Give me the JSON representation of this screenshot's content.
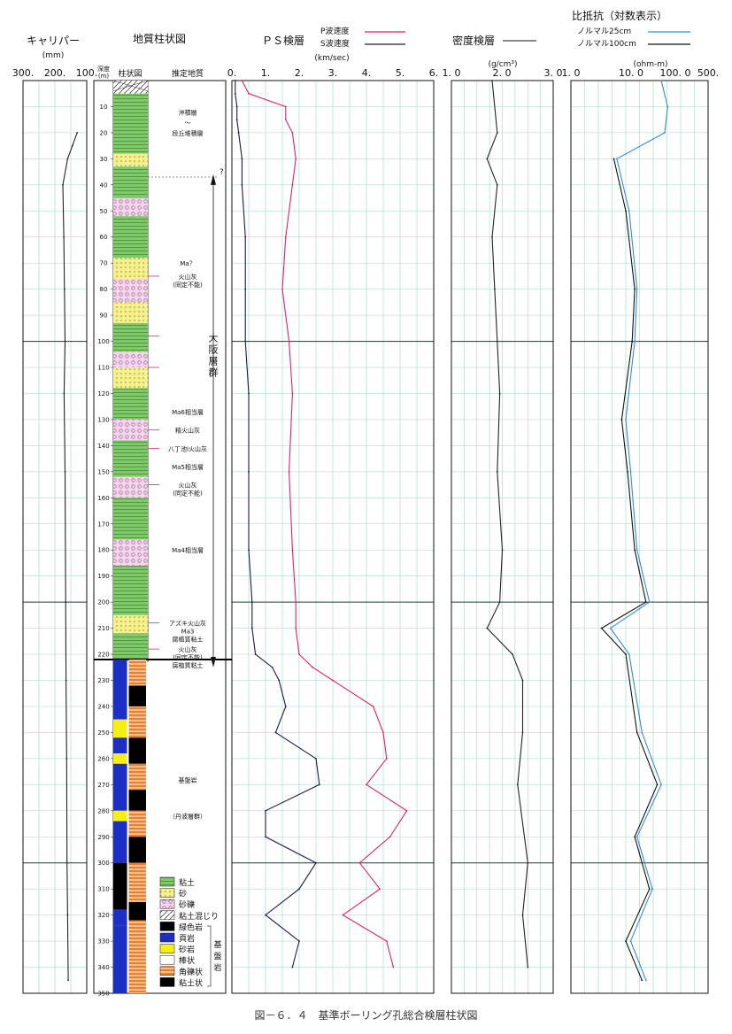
{
  "caption": "図－６．４　基準ボーリング孔総合検層柱状図",
  "headers": {
    "caliper": "キャリパー",
    "caliper_unit": "(mm)",
    "geo": "地質柱状図",
    "depth": "深度",
    "depth_unit": "(m)",
    "column": "柱状図",
    "estimated": "推定地質",
    "ps": "ＰＳ検層",
    "ps_unit": "(km/sec)",
    "density": "密度検層",
    "density_unit": "(g/cm³)",
    "resistivity": "比抵抗（対数表示）",
    "res_unit": "(ohm-m)"
  },
  "legend_lines": {
    "p_wave": "P波速度",
    "s_wave": "S波速度",
    "normal25": "ノルマル25cm",
    "normal100": "ノルマル100cm"
  },
  "geo_annotations": [
    {
      "text": "沖積層",
      "depth": 12
    },
    {
      "text": "〜",
      "depth": 16
    },
    {
      "text": "段丘堆積層",
      "depth": 20
    },
    {
      "text": "Ma？",
      "depth": 70
    },
    {
      "text": "火山灰",
      "depth": 75
    },
    {
      "text": "(同定不能)",
      "depth": 78
    },
    {
      "text": "Ma6相当層",
      "depth": 127
    },
    {
      "text": "精火山灰",
      "depth": 134
    },
    {
      "text": "八丁池Ⅰ火山灰",
      "depth": 141
    },
    {
      "text": "Ma5相当層",
      "depth": 148
    },
    {
      "text": "火山灰",
      "depth": 155
    },
    {
      "text": "(同定不能)",
      "depth": 158
    },
    {
      "text": "Ma4相当層",
      "depth": 180
    },
    {
      "text": "アズキ火山灰",
      "depth": 208
    },
    {
      "text": "Ma3",
      "depth": 211
    },
    {
      "text": "腐植質粘土",
      "depth": 214
    },
    {
      "text": "火山灰",
      "depth": 218
    },
    {
      "text": "(同定不能)",
      "depth": 221
    },
    {
      "text": "腐植質粘土",
      "depth": 224
    },
    {
      "text": "基盤岩",
      "depth": 268
    },
    {
      "text": "（丹波層群）",
      "depth": 282
    }
  ],
  "group_label": "大阪層群",
  "question_mark": "?",
  "rock_legend": [
    {
      "label": "粘土",
      "color": "#7fc96a",
      "kind": "hatch"
    },
    {
      "label": "砂",
      "color": "#f4f08c",
      "kind": "dots"
    },
    {
      "label": "砂礫",
      "color": "#f2d6ea",
      "kind": "circles"
    },
    {
      "label": "粘土混じり",
      "color": "#ffffff",
      "kind": "slash"
    },
    {
      "label": "緑色岩",
      "color": "#000000",
      "kind": "solid"
    },
    {
      "label": "頁岩",
      "color": "#1c2fc4",
      "kind": "solid"
    },
    {
      "label": "砂岩",
      "color": "#f6ef16",
      "kind": "solid"
    },
    {
      "label": "棒状",
      "color": "#ffffff",
      "kind": "solid"
    },
    {
      "label": "角礫状",
      "color": "#ee7f2a",
      "kind": "stripes"
    },
    {
      "label": "粘土状",
      "color": "#000000",
      "kind": "solid"
    }
  ],
  "rock_legend_group": "基盤岩",
  "colors": {
    "p_wave": "#e0206a",
    "s_wave": "#1a1a4a",
    "normal25": "#2e8ed8",
    "normal100": "#111111",
    "grid": "#9fd6c8",
    "grid_major": "#1b3a3a",
    "clay": "#7fc96a",
    "shale": "#1c2fc4",
    "sandstone": "#f6ef16",
    "breccia": "#ee7f2a",
    "greenstone": "#000000"
  },
  "chart_data": [
    {
      "type": "line",
      "title": "キャリパー",
      "xlabel": "(mm)",
      "ylabel": "深度 (m)",
      "x_ticks": [
        "300.",
        "200.",
        "100."
      ],
      "xlim": [
        300,
        100
      ],
      "ylim": [
        0,
        350
      ],
      "depth": [
        20,
        25,
        30,
        40,
        60,
        80,
        100,
        120,
        150,
        200,
        230,
        260,
        300,
        320,
        345
      ],
      "series": [
        {
          "values": [
            130,
            145,
            160,
            175,
            172,
            170,
            168,
            171,
            168,
            166,
            165,
            163,
            162,
            160,
            158
          ]
        }
      ]
    },
    {
      "type": "line",
      "title": "ＰＳ検層",
      "xlabel": "(km/sec)",
      "x_ticks": [
        "0.",
        "1.",
        "2.",
        "3.",
        "4.",
        "5.",
        "6."
      ],
      "xlim": [
        0,
        6
      ],
      "ylim": [
        0,
        350
      ],
      "depth": [
        0,
        5,
        10,
        15,
        20,
        30,
        40,
        60,
        80,
        100,
        120,
        150,
        180,
        200,
        210,
        220,
        225,
        230,
        240,
        250,
        260,
        270,
        280,
        290,
        300,
        310,
        320,
        330,
        340
      ],
      "series": [
        {
          "name": "P波速度",
          "values": [
            0.3,
            0.5,
            1.6,
            1.6,
            1.8,
            1.9,
            1.8,
            1.6,
            1.5,
            1.7,
            1.8,
            1.7,
            1.8,
            1.9,
            1.9,
            2.0,
            2.4,
            3.0,
            4.2,
            4.5,
            4.6,
            4.0,
            5.2,
            4.7,
            3.8,
            4.4,
            3.3,
            4.6,
            4.8
          ]
        },
        {
          "name": "S波速度",
          "values": [
            0.1,
            0.1,
            0.15,
            0.15,
            0.2,
            0.3,
            0.3,
            0.4,
            0.4,
            0.4,
            0.5,
            0.5,
            0.5,
            0.6,
            0.6,
            0.7,
            1.2,
            1.4,
            1.6,
            1.3,
            2.5,
            2.6,
            1.0,
            1.0,
            2.5,
            2.0,
            1.0,
            2.0,
            1.8
          ]
        }
      ]
    },
    {
      "type": "line",
      "title": "密度検層",
      "xlabel": "(g/cm³)",
      "x_ticks": [
        "1. 0",
        "2. 0",
        "3. 0"
      ],
      "xlim": [
        1.0,
        3.0
      ],
      "ylim": [
        0,
        350
      ],
      "depth": [
        0,
        20,
        30,
        40,
        60,
        80,
        100,
        120,
        150,
        180,
        200,
        210,
        220,
        230,
        250,
        270,
        300,
        320,
        340
      ],
      "series": [
        {
          "values": [
            1.8,
            1.9,
            1.7,
            1.9,
            1.8,
            1.85,
            1.9,
            1.95,
            1.9,
            2.0,
            1.95,
            1.7,
            2.2,
            2.4,
            2.4,
            2.3,
            2.5,
            2.4,
            2.5
          ]
        }
      ]
    },
    {
      "type": "line",
      "title": "比抵抗（対数表示）",
      "xlabel": "(ohm-m)",
      "x_ticks": [
        "1. 0",
        "10. 0",
        "100. 0",
        "500."
      ],
      "xlim": [
        1,
        500
      ],
      "scale": "log",
      "ylim": [
        0,
        350
      ],
      "depth": [
        0,
        10,
        20,
        30,
        50,
        80,
        100,
        130,
        150,
        180,
        200,
        210,
        220,
        250,
        270,
        290,
        310,
        330,
        345
      ],
      "series": [
        {
          "name": "ノルマル25cm",
          "values": [
            60,
            80,
            70,
            8,
            14,
            20,
            18,
            12,
            15,
            20,
            35,
            6,
            14,
            25,
            60,
            20,
            40,
            15,
            30
          ]
        },
        {
          "name": "ノルマル100cm",
          "values": [
            null,
            null,
            null,
            7,
            12,
            18,
            16,
            10,
            13,
            18,
            30,
            4,
            12,
            20,
            50,
            18,
            35,
            12,
            25
          ]
        }
      ]
    }
  ]
}
